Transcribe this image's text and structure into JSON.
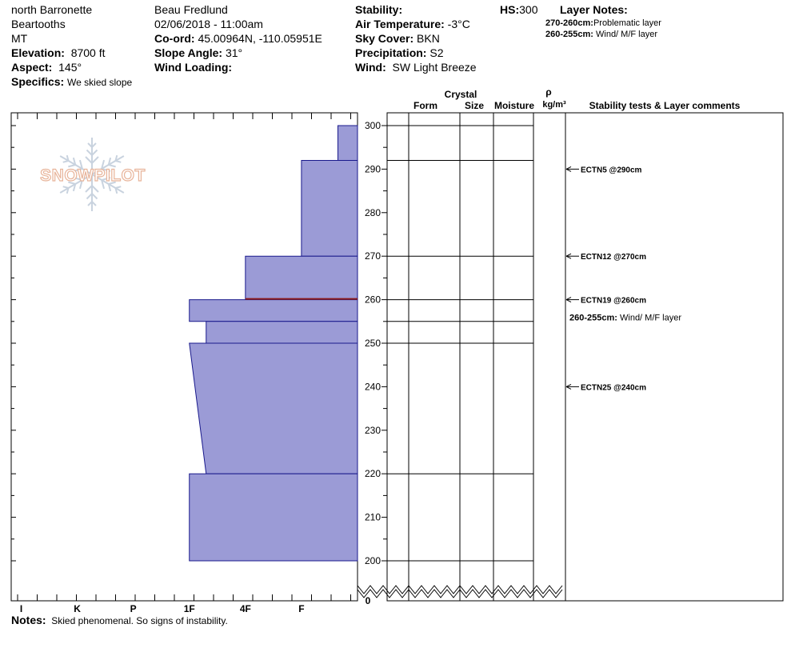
{
  "header": {
    "location": "north Barronette",
    "range": "Beartooths",
    "state": "MT",
    "elevation_label": "Elevation:",
    "elevation_value": "8700 ft",
    "aspect_label": "Aspect:",
    "aspect_value": "145°",
    "specifics_label": "Specifics:",
    "specifics_value": "We skied slope",
    "observer": "Beau  Fredlund",
    "datetime": "02/06/2018 - 11:00am",
    "coord_label": "Co-ord:",
    "coord_value": "45.00964N, -110.05951E",
    "slope_label": "Slope Angle:",
    "slope_value": "31°",
    "wind_loading_label": "Wind Loading:",
    "stability_label": "Stability:",
    "air_temp_label": "Air Temperature:",
    "air_temp_value": "-3°C",
    "sky_label": "Sky Cover:",
    "sky_value": "BKN",
    "precip_label": "Precipitation:",
    "precip_value": "S2",
    "wind_label": "Wind:",
    "wind_value": "SW Light Breeze",
    "hs_label": "HS:",
    "hs_value": "300",
    "layer_notes_title": "Layer Notes:",
    "layer_notes": [
      {
        "range": "270-260cm:",
        "text": "Problematic layer"
      },
      {
        "range": "260-255cm:",
        "text": "Wind/ M/F layer"
      }
    ]
  },
  "logo_text": "SNOWPILOT",
  "notes_label": "Notes:",
  "notes_value": "Skied phenomenal.  So signs of instability.",
  "columns": {
    "crystal": "Crystal",
    "form": "Form",
    "size": "Size",
    "moisture": "Moisture",
    "rho": "ρ",
    "density_unit": "kg/m³",
    "stability": "Stability tests & Layer comments"
  },
  "colors": {
    "layer_fill": "#9b9bd6",
    "layer_stroke": "#1a1a8c",
    "weak_layer_line": "#8b1a1a",
    "logo": "#e8b49a"
  },
  "chart_data": {
    "type": "snow_profile",
    "hardness_scale": [
      "I",
      "K",
      "P",
      "1F",
      "4F",
      "F"
    ],
    "hardness_scale_codes": {
      "F": 1,
      "4F": 2,
      "1F": 3,
      "P": 4,
      "K": 5,
      "I": 6
    },
    "height_ticks": [
      300,
      290,
      280,
      270,
      260,
      250,
      240,
      230,
      220,
      210,
      200,
      0
    ],
    "ylim": [
      200,
      300
    ],
    "hs": 300,
    "layers": [
      {
        "top": 300,
        "bottom": 292,
        "hardness_top": "F-",
        "hardness_bottom": "F-",
        "hardness_value_top": 0.35,
        "hardness_value_bottom": 0.35
      },
      {
        "top": 292,
        "bottom": 270,
        "hardness_top": "F",
        "hardness_bottom": "F",
        "hardness_value_top": 1.0,
        "hardness_value_bottom": 1.0
      },
      {
        "top": 270,
        "bottom": 260,
        "hardness_top": "4F",
        "hardness_bottom": "4F",
        "hardness_value_top": 2.0,
        "hardness_value_bottom": 2.0
      },
      {
        "top": 260,
        "bottom": 255,
        "hardness_top": "1F",
        "hardness_bottom": "1F",
        "hardness_value_top": 3.0,
        "hardness_value_bottom": 3.0
      },
      {
        "top": 255,
        "bottom": 250,
        "hardness_top": "1F-",
        "hardness_bottom": "1F-",
        "hardness_value_top": 2.7,
        "hardness_value_bottom": 2.7
      },
      {
        "top": 250,
        "bottom": 220,
        "hardness_top": "1F",
        "hardness_bottom": "1F-",
        "hardness_value_top": 3.0,
        "hardness_value_bottom": 2.7
      },
      {
        "top": 220,
        "bottom": 200,
        "hardness_top": "1F",
        "hardness_bottom": "1F",
        "hardness_value_top": 3.0,
        "hardness_value_bottom": 3.0
      }
    ],
    "weak_layer_height": 260,
    "layer_boundaries": [
      300,
      292,
      270,
      260,
      255,
      250,
      220,
      200
    ],
    "stability_tests": [
      {
        "height": 290,
        "label": "ECTN5 @290cm"
      },
      {
        "height": 270,
        "label": "ECTN12 @270cm"
      },
      {
        "height": 260,
        "label": "ECTN19 @260cm"
      },
      {
        "height": 240,
        "label": "ECTN25 @240cm"
      }
    ],
    "layer_comments": [
      {
        "height": 256,
        "range": "260-255cm:",
        "text": "Wind/ M/F layer"
      }
    ]
  }
}
